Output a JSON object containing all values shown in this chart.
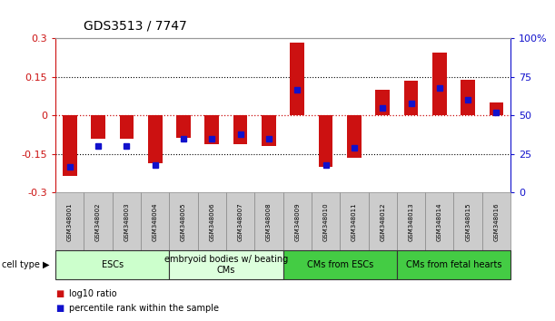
{
  "title": "GDS3513 / 7747",
  "samples": [
    "GSM348001",
    "GSM348002",
    "GSM348003",
    "GSM348004",
    "GSM348005",
    "GSM348006",
    "GSM348007",
    "GSM348008",
    "GSM348009",
    "GSM348010",
    "GSM348011",
    "GSM348012",
    "GSM348013",
    "GSM348014",
    "GSM348015",
    "GSM348016"
  ],
  "log10_ratio": [
    -0.235,
    -0.09,
    -0.09,
    -0.185,
    -0.085,
    -0.11,
    -0.11,
    -0.12,
    0.285,
    -0.2,
    -0.165,
    0.1,
    0.135,
    0.245,
    0.14,
    0.05
  ],
  "percentile_rank": [
    17,
    30,
    30,
    18,
    35,
    35,
    38,
    35,
    67,
    18,
    29,
    55,
    58,
    68,
    60,
    52
  ],
  "cell_types": [
    {
      "label": "ESCs",
      "start": 0,
      "end": 4,
      "color": "#ccffcc"
    },
    {
      "label": "embryoid bodies w/ beating\nCMs",
      "start": 4,
      "end": 8,
      "color": "#ddffdd"
    },
    {
      "label": "CMs from ESCs",
      "start": 8,
      "end": 12,
      "color": "#44cc44"
    },
    {
      "label": "CMs from fetal hearts",
      "start": 12,
      "end": 16,
      "color": "#44cc44"
    }
  ],
  "ylim_left": [
    -0.3,
    0.3
  ],
  "ylim_right": [
    0,
    100
  ],
  "yticks_left": [
    -0.3,
    -0.15,
    0,
    0.15,
    0.3
  ],
  "yticks_right": [
    0,
    25,
    50,
    75,
    100
  ],
  "ytick_labels_left": [
    "-0.3",
    "-0.15",
    "0",
    "0.15",
    "0.3"
  ],
  "ytick_labels_right": [
    "0",
    "25",
    "50",
    "75",
    "100%"
  ],
  "bar_color": "#cc1111",
  "dot_color": "#1111cc",
  "zero_line_color": "#cc1111",
  "hgrid_color": "#000000",
  "bar_width": 0.5,
  "dot_size": 5,
  "sample_box_color": "#cccccc",
  "sample_box_edge": "#888888",
  "figure_bg": "#ffffff",
  "legend_square_size": 7,
  "title_fontsize": 10,
  "ytick_fontsize": 8,
  "sample_fontsize": 5,
  "celltype_fontsize": 7,
  "legend_fontsize": 7
}
